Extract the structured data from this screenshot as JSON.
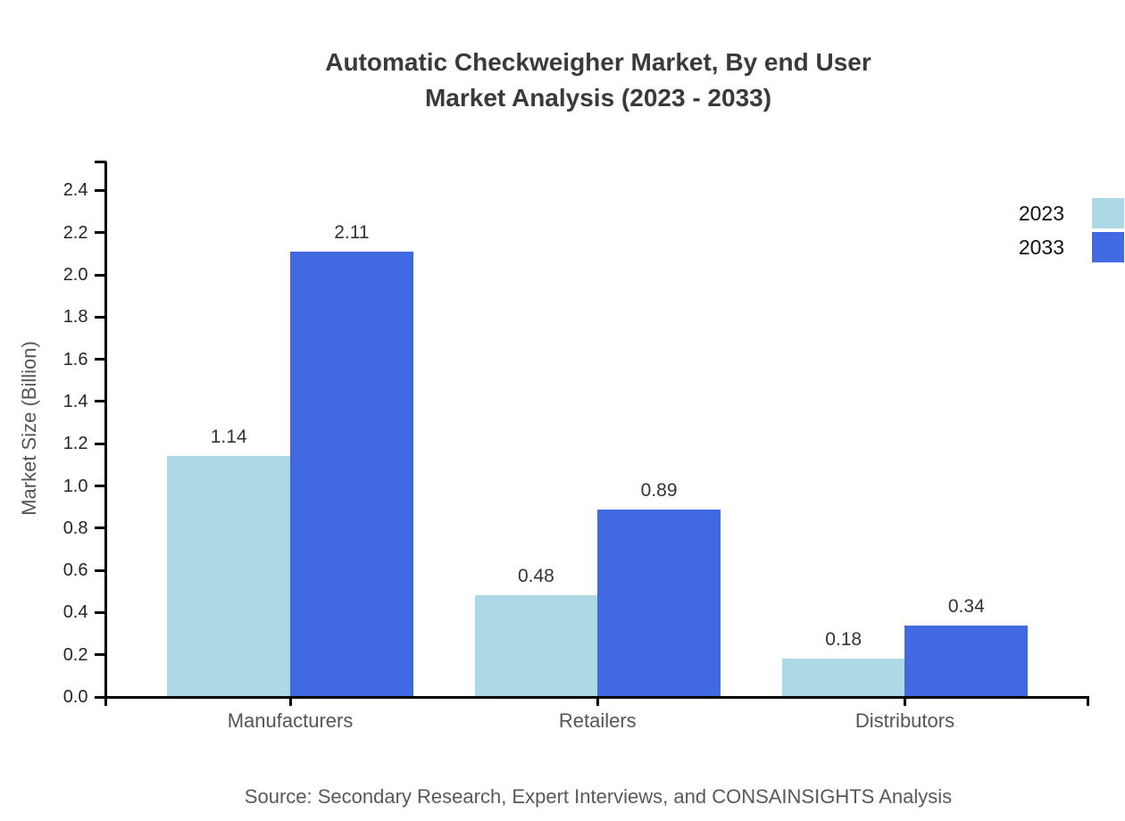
{
  "chart_data": {
    "type": "bar",
    "title": "Automatic Checkweigher Market, By end User\nMarket Analysis (2023 - 2033)",
    "ylabel": "Market Size (Billion)",
    "xlabel": "",
    "categories": [
      "Manufacturers",
      "Retailers",
      "Distributors"
    ],
    "series": [
      {
        "name": "2023",
        "color": "#ADD8E6",
        "values": [
          1.14,
          0.48,
          0.18
        ]
      },
      {
        "name": "2033",
        "color": "#4169E1",
        "values": [
          2.11,
          0.89,
          0.34
        ]
      }
    ],
    "ylim": [
      0.0,
      2.4
    ],
    "ytick_step": 0.2,
    "ytick_labels": [
      "0.0",
      "0.2",
      "0.4",
      "0.6",
      "0.8",
      "1.0",
      "1.2",
      "1.4",
      "1.6",
      "1.8",
      "2.0",
      "2.2",
      "2.4"
    ],
    "value_labels": [
      [
        "1.14",
        "0.48",
        "0.18"
      ],
      [
        "2.11",
        "0.89",
        "0.34"
      ]
    ],
    "grid": false,
    "legend_position": "top-right-outside",
    "source": "Source: Secondary Research, Expert Interviews, and CONSAINSIGHTS Analysis"
  },
  "colors": {
    "series_2023": "#ADD8E6",
    "series_2033": "#4169E1",
    "axis": "#000000",
    "title_text": "#3a3a3a",
    "tick_text": "#262626",
    "category_text": "#555555",
    "source_text": "#595959"
  }
}
